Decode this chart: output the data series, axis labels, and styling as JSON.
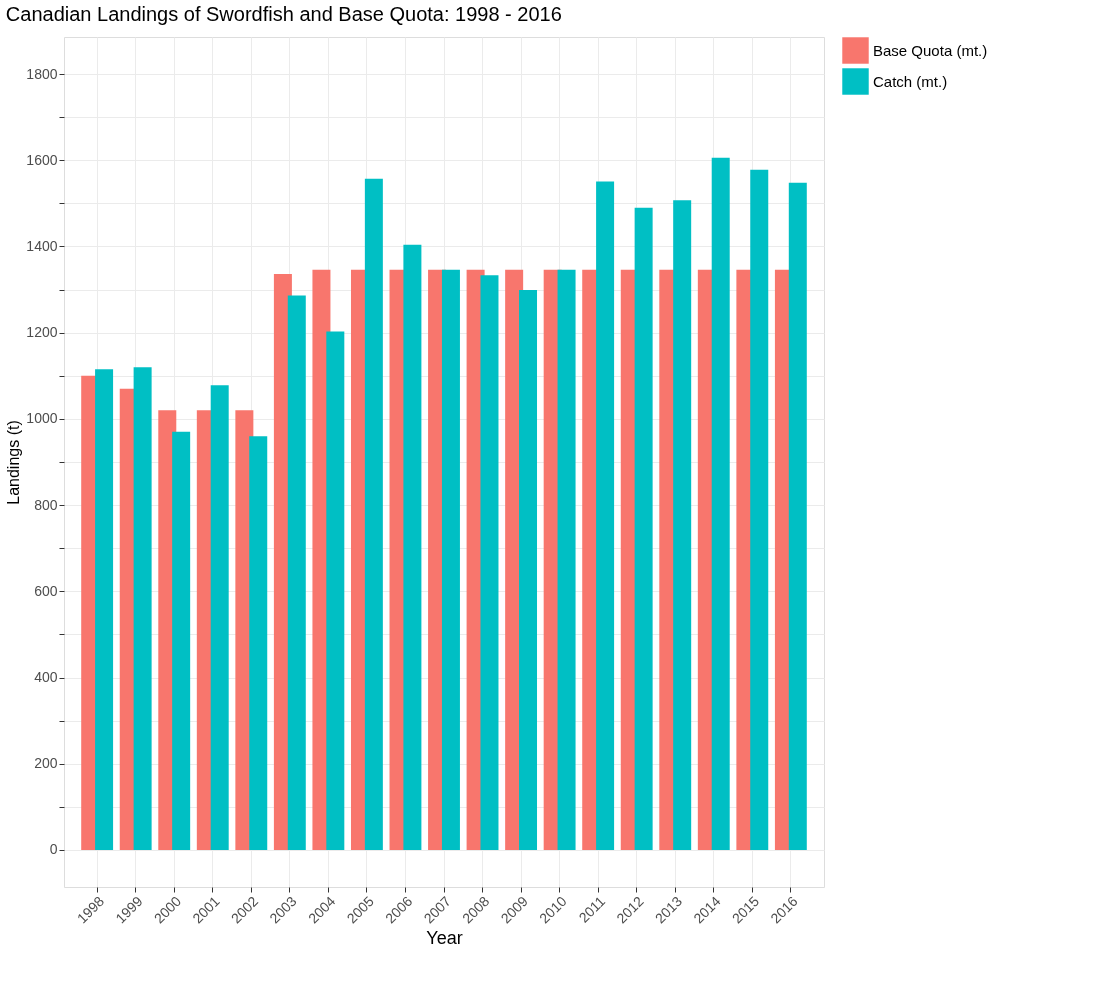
{
  "chart_data": {
    "type": "bar",
    "title": "Canadian Landings of Swordfish and Base Quota: 1998 - 2016",
    "xlabel": "Year",
    "ylabel": "Landings (t)",
    "categories": [
      "1998",
      "1999",
      "2000",
      "2001",
      "2002",
      "2003",
      "2004",
      "2005",
      "2006",
      "2007",
      "2008",
      "2009",
      "2010",
      "2011",
      "2012",
      "2013",
      "2014",
      "2015",
      "2016"
    ],
    "series": [
      {
        "name": "Base Quota (mt.)",
        "color": "#f8766d",
        "values": [
          1100,
          1070,
          1020,
          1020,
          1020,
          1336,
          1346,
          1346,
          1346,
          1346,
          1346,
          1346,
          1346,
          1346,
          1346,
          1346,
          1346,
          1346,
          1346
        ]
      },
      {
        "name": "Catch (mt.)",
        "color": "#00bfc4",
        "values": [
          1115,
          1120,
          970,
          1078,
          960,
          1286,
          1203,
          1557,
          1404,
          1346,
          1333,
          1299,
          1346,
          1551,
          1490,
          1507,
          1606,
          1578,
          1548
        ]
      }
    ],
    "ylim": [
      -86,
      1886
    ],
    "yticks": [
      0,
      {
        "value": 100,
        "label": null
      },
      200,
      {
        "value": 300,
        "label": null
      },
      400,
      {
        "value": 500,
        "label": null
      },
      600,
      {
        "value": 700,
        "label": null
      },
      800,
      {
        "value": 900,
        "label": null
      },
      1000,
      {
        "value": 1100,
        "label": null
      },
      1200,
      {
        "value": 1300,
        "label": null
      },
      1400,
      {
        "value": 1500,
        "label": null
      },
      1600,
      {
        "value": 1700,
        "label": null
      },
      1800
    ],
    "grid": true,
    "legend": "right"
  }
}
